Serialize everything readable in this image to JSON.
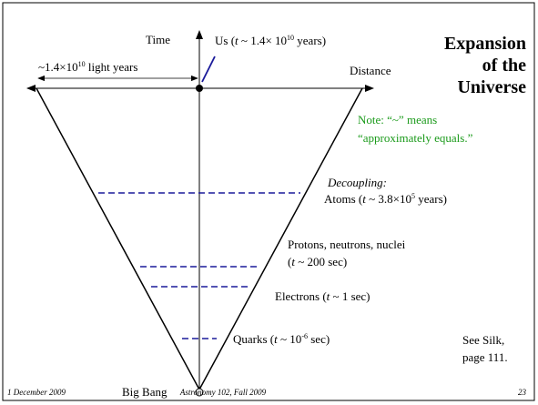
{
  "title": [
    "Expansion",
    "of the",
    "Universe"
  ],
  "axes": {
    "time": "Time",
    "distance": "Distance"
  },
  "span_label": [
    "~1.4×10",
    "10",
    " light years"
  ],
  "us_label": [
    "Us (",
    "t",
    " ~ 1.4× 10",
    "10",
    " years)"
  ],
  "note": [
    "Note: “~” means",
    "“approximately equals.”"
  ],
  "events": {
    "decoupling": "Decoupling:",
    "atoms": [
      "Atoms (",
      "t",
      " ~ 3.8×10",
      "5",
      " years)"
    ],
    "protons": "Protons, neutrons, nuclei",
    "protons_time": [
      "(",
      "t",
      " ~ 200 sec)"
    ],
    "electrons": [
      "Electrons (",
      "t",
      " ~ 1 sec)"
    ],
    "quarks": [
      "Quarks (",
      "t",
      " ~ 10",
      "-6",
      " sec)"
    ]
  },
  "big_bang": "Big Bang",
  "reference": [
    "See Silk,",
    "page 111."
  ],
  "footer": {
    "date": "1 December 2009",
    "course": "Astronomy 102, Fall 2009",
    "page": "23"
  }
}
